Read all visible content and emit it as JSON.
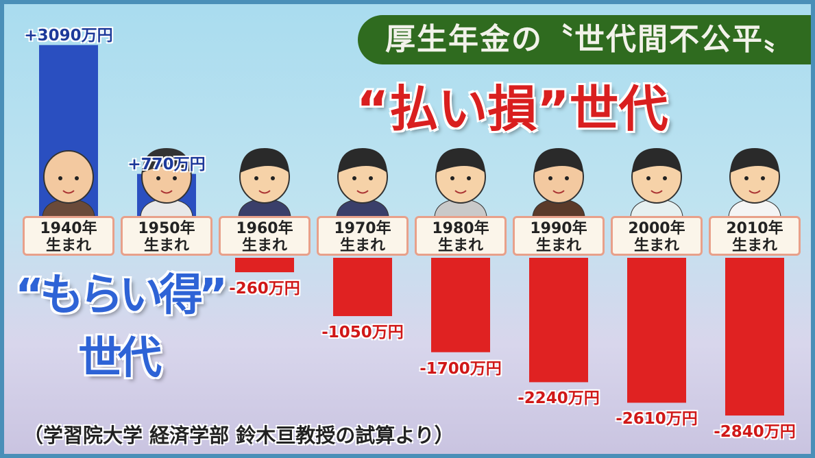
{
  "title": "厚生年金の〝世代間不公平〟",
  "loss_label": "“払い損”世代",
  "gain_label_line1": "“もらい得”",
  "gain_label_line2": "世代",
  "source": "（学習院大学 経済学部 鈴木亘教授の試算より）",
  "colors": {
    "positive": "#2a4fc0",
    "negative": "#e02222",
    "title_bg": "#2f6b1f"
  },
  "chart_data": {
    "type": "bar",
    "title": "厚生年金の〝世代間不公平〟",
    "unit": "万円",
    "categories": [
      "1940年\n生まれ",
      "1950年\n生まれ",
      "1960年\n生まれ",
      "1970年\n生まれ",
      "1980年\n生まれ",
      "1990年\n生まれ",
      "2000年\n生まれ",
      "2010年\n生まれ"
    ],
    "category_years": [
      "1940年",
      "1950年",
      "1960年",
      "1970年",
      "1980年",
      "1990年",
      "2000年",
      "2010年"
    ],
    "category_suffix": "生まれ",
    "values": [
      3090,
      770,
      -260,
      -1050,
      -1700,
      -2240,
      -2610,
      -2840
    ],
    "value_labels": [
      "+3090万円",
      "+770万円",
      "-260万円",
      "-1050万円",
      "-1700万円",
      "-2240万円",
      "-2610万円",
      "-2840万円"
    ],
    "grid": false
  }
}
